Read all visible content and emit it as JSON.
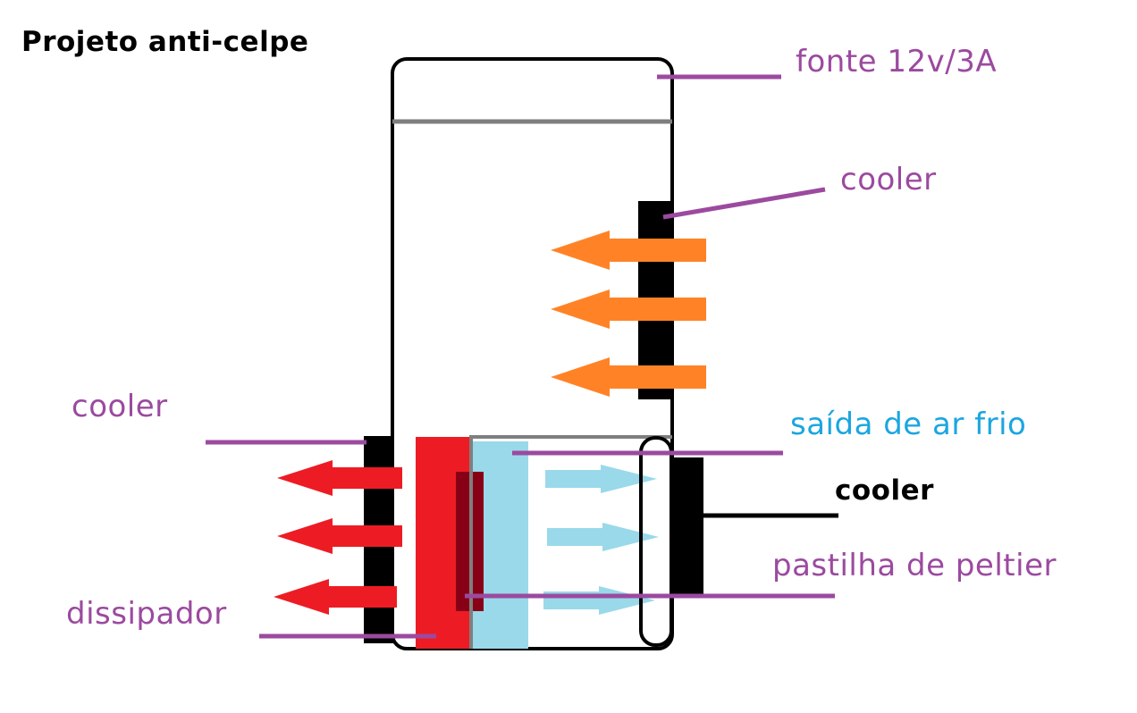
{
  "title": "Projeto anti-celpe",
  "labels": {
    "fonte": "fonte 12v/3A",
    "cooler_top": "cooler",
    "cooler_left": "cooler",
    "saida": "saída de ar frio",
    "cooler_right": "cooler",
    "pastilha": "pastilha de peltier",
    "dissipador": "dissipador"
  },
  "colors": {
    "label_purple": "#9b4a9f",
    "label_blue": "#1ba6e0",
    "label_black": "#000000",
    "leader_purple": "#9b4a9f",
    "hot_arrow_orange": "#ff8326",
    "hot_arrow_red": "#ed1c24",
    "cold_arrow_blue": "#99d9ea",
    "heatsink_red": "#ed1c24",
    "peltier_darkred": "#880015",
    "cold_side_blue": "#99d9ea",
    "divider_gray": "#7f7f7f",
    "cooler_black": "#000000"
  }
}
